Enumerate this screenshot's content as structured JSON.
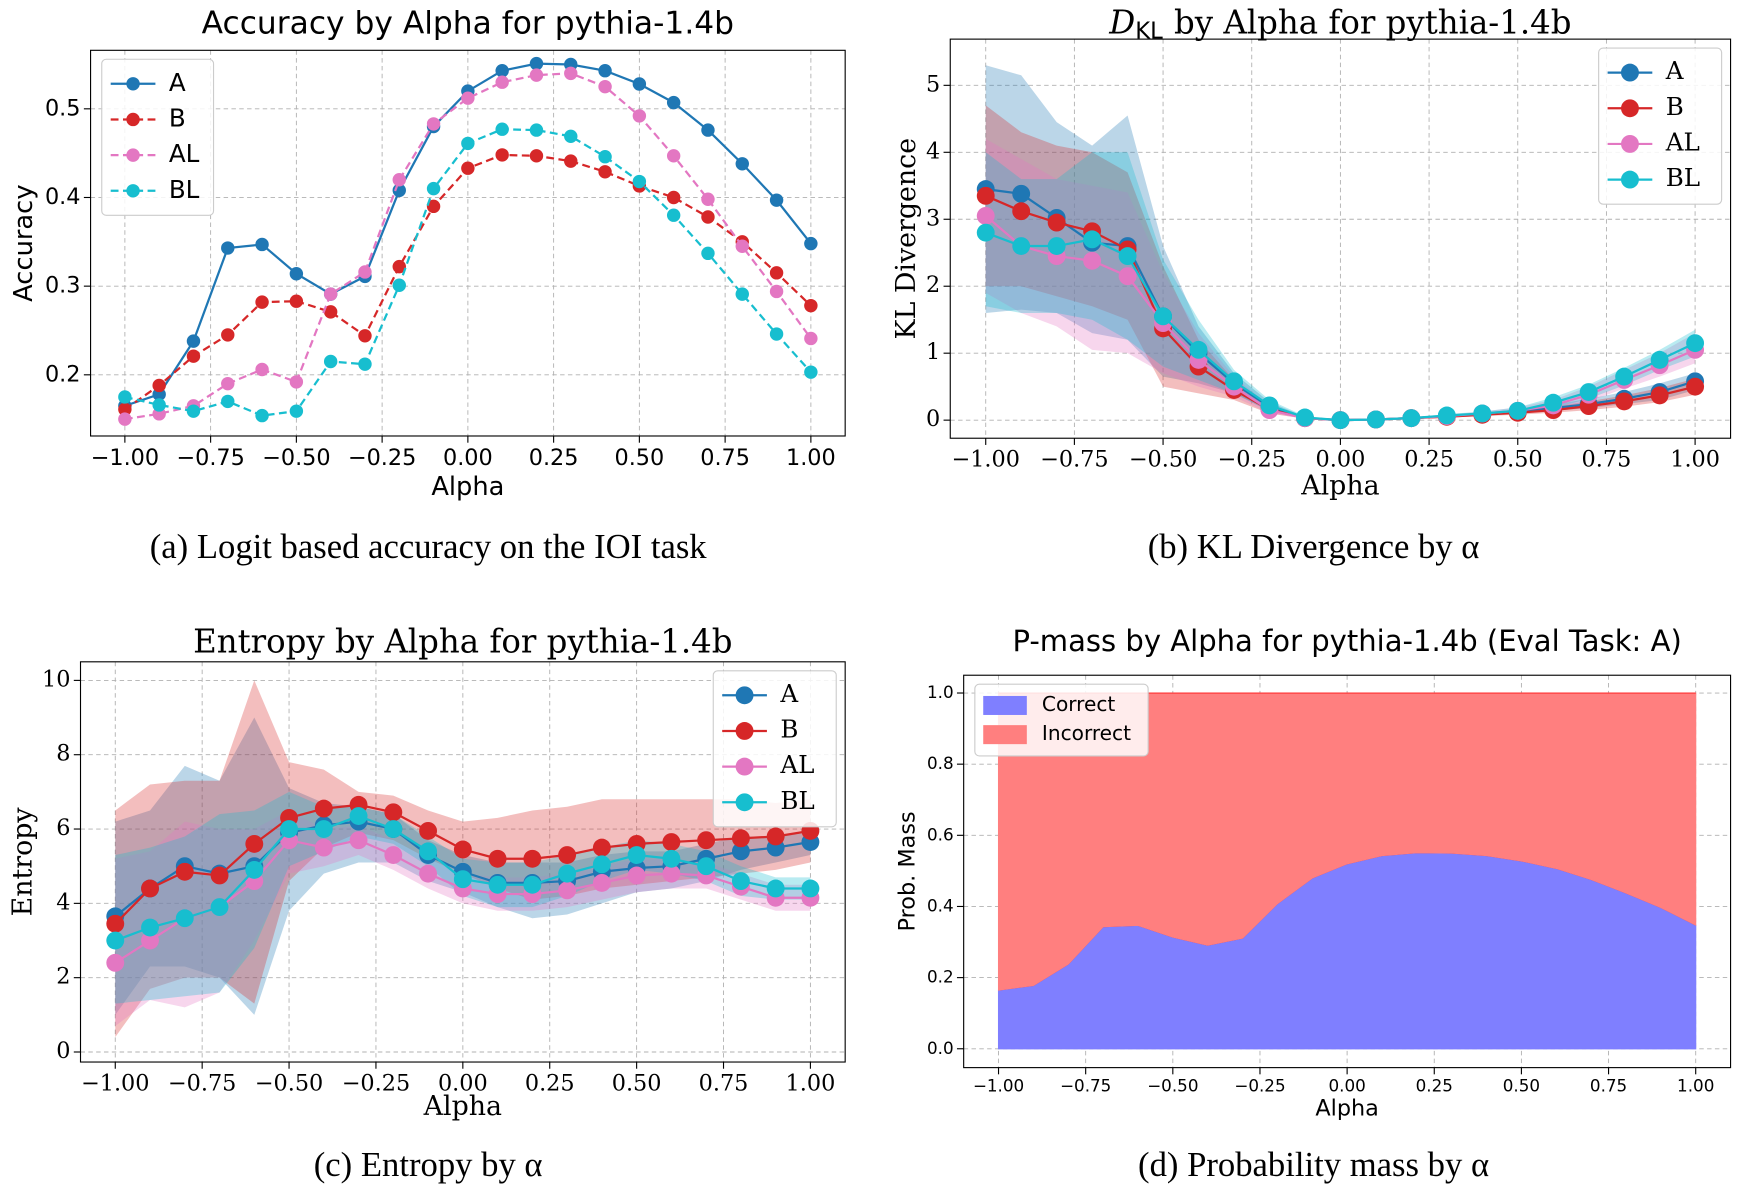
{
  "chart_data": [
    {
      "type": "line",
      "font": "sans",
      "legend": "upper left",
      "grid": true,
      "title": "Accuracy by Alpha for pythia-1.4b",
      "xlabel": "Alpha",
      "ylabel": "Accuracy",
      "caption": "(a) Logit based accuracy on the IOI task",
      "x": [
        -1,
        -0.9,
        -0.8,
        -0.7,
        -0.6,
        -0.5,
        -0.4,
        -0.3,
        -0.2,
        -0.1,
        0,
        0.1,
        0.2,
        0.3,
        0.4,
        0.5,
        0.6,
        0.7,
        0.8,
        0.9,
        1
      ],
      "xlim": [
        -1.1,
        1.1
      ],
      "ylim": [
        0.131,
        0.566
      ],
      "xticks": [
        {
          "value": -1,
          "label": "−1.00"
        },
        {
          "value": -0.75,
          "label": "−0.75"
        },
        {
          "value": -0.5,
          "label": "−0.50"
        },
        {
          "value": -0.25,
          "label": "−0.25"
        },
        {
          "value": 0,
          "label": "0.00"
        },
        {
          "value": 0.25,
          "label": "0.25"
        },
        {
          "value": 0.5,
          "label": "0.50"
        },
        {
          "value": 0.75,
          "label": "0.75"
        },
        {
          "value": 1,
          "label": "1.00"
        }
      ],
      "yticks": [
        0.2,
        0.3,
        0.4,
        0.5
      ],
      "series": [
        {
          "name": "A",
          "color": "#1f77b4",
          "linestyle": "solid",
          "values": [
            0.165,
            0.178,
            0.238,
            0.343,
            0.347,
            0.314,
            0.291,
            0.311,
            0.408,
            0.48,
            0.52,
            0.543,
            0.551,
            0.55,
            0.543,
            0.528,
            0.507,
            0.476,
            0.438,
            0.397,
            0.348
          ]
        },
        {
          "name": "B",
          "color": "#d62728",
          "linestyle": "dashed",
          "values": [
            0.161,
            0.188,
            0.221,
            0.245,
            0.282,
            0.283,
            0.271,
            0.244,
            0.322,
            0.39,
            0.433,
            0.448,
            0.447,
            0.441,
            0.429,
            0.413,
            0.4,
            0.378,
            0.35,
            0.315,
            0.278
          ]
        },
        {
          "name": "AL",
          "color": "#e377c2",
          "linestyle": "dashed",
          "values": [
            0.15,
            0.156,
            0.165,
            0.19,
            0.206,
            0.192,
            0.291,
            0.316,
            0.42,
            0.483,
            0.512,
            0.53,
            0.538,
            0.54,
            0.525,
            0.492,
            0.447,
            0.398,
            0.345,
            0.294,
            0.241
          ]
        },
        {
          "name": "BL",
          "color": "#17becf",
          "linestyle": "dashed",
          "values": [
            0.175,
            0.166,
            0.159,
            0.17,
            0.154,
            0.159,
            0.215,
            0.212,
            0.301,
            0.41,
            0.461,
            0.477,
            0.476,
            0.469,
            0.446,
            0.418,
            0.38,
            0.337,
            0.291,
            0.246,
            0.203
          ]
        }
      ]
    },
    {
      "type": "line",
      "font": "serif",
      "legend": "upper right",
      "grid": true,
      "title_parts": [
        "D",
        "KL",
        "by Alpha for pythia-1.4b"
      ],
      "xlabel": "Alpha",
      "ylabel": "KL Divergence",
      "caption": "(b) KL Divergence by α",
      "x": [
        -1,
        -0.9,
        -0.8,
        -0.7,
        -0.6,
        -0.5,
        -0.4,
        -0.3,
        -0.2,
        -0.1,
        0,
        0.1,
        0.2,
        0.3,
        0.4,
        0.5,
        0.6,
        0.7,
        0.8,
        0.9,
        1
      ],
      "xlim": [
        -1.1,
        1.1
      ],
      "ylim": [
        -0.27,
        5.69
      ],
      "xticks": [
        {
          "value": -1,
          "label": "−1.00"
        },
        {
          "value": -0.75,
          "label": "−0.75"
        },
        {
          "value": -0.5,
          "label": "−0.50"
        },
        {
          "value": -0.25,
          "label": "−0.25"
        },
        {
          "value": 0,
          "label": "0.00"
        },
        {
          "value": 0.25,
          "label": "0.25"
        },
        {
          "value": 0.5,
          "label": "0.50"
        },
        {
          "value": 0.75,
          "label": "0.75"
        },
        {
          "value": 1,
          "label": "1.00"
        }
      ],
      "yticks": [
        0,
        1,
        2,
        3,
        4,
        5
      ],
      "series": [
        {
          "name": "A",
          "color": "#1f77b4",
          "linestyle": "solid",
          "values": [
            3.45,
            3.38,
            3.02,
            2.65,
            2.6,
            1.55,
            1.0,
            0.55,
            0.2,
            0.03,
            0.0,
            0.01,
            0.03,
            0.06,
            0.09,
            0.13,
            0.18,
            0.24,
            0.32,
            0.42,
            0.58
          ],
          "upper": [
            5.3,
            5.15,
            4.45,
            4.1,
            4.55,
            2.6,
            1.4,
            0.7,
            0.27,
            0.05,
            0.01,
            0.02,
            0.04,
            0.08,
            0.11,
            0.16,
            0.23,
            0.32,
            0.42,
            0.55,
            0.7
          ],
          "lower": [
            1.6,
            1.65,
            1.6,
            1.3,
            1.2,
            0.65,
            0.55,
            0.4,
            0.13,
            0.02,
            0,
            0.005,
            0.02,
            0.045,
            0.07,
            0.1,
            0.14,
            0.18,
            0.24,
            0.3,
            0.45
          ]
        },
        {
          "name": "B",
          "color": "#d62728",
          "linestyle": "solid",
          "values": [
            3.35,
            3.12,
            2.95,
            2.82,
            2.55,
            1.37,
            0.8,
            0.45,
            0.16,
            0.03,
            0.0,
            0.01,
            0.03,
            0.05,
            0.08,
            0.11,
            0.15,
            0.21,
            0.28,
            0.37,
            0.5
          ],
          "upper": [
            4.7,
            4.3,
            4.1,
            4.0,
            3.7,
            2.3,
            1.2,
            0.6,
            0.22,
            0.05,
            0.01,
            0.02,
            0.04,
            0.07,
            0.1,
            0.14,
            0.2,
            0.28,
            0.37,
            0.48,
            0.62
          ],
          "lower": [
            2.0,
            2.0,
            1.85,
            1.7,
            1.5,
            0.5,
            0.4,
            0.3,
            0.1,
            0.02,
            0,
            0.005,
            0.02,
            0.035,
            0.06,
            0.08,
            0.11,
            0.15,
            0.2,
            0.27,
            0.38
          ]
        },
        {
          "name": "AL",
          "color": "#e377c2",
          "linestyle": "solid",
          "values": [
            3.05,
            2.6,
            2.45,
            2.38,
            2.15,
            1.45,
            0.9,
            0.5,
            0.15,
            0.03,
            0.0,
            0.01,
            0.03,
            0.06,
            0.1,
            0.14,
            0.22,
            0.38,
            0.6,
            0.82,
            1.05
          ],
          "upper": [
            4.2,
            3.9,
            3.6,
            3.5,
            3.4,
            2.2,
            1.3,
            0.65,
            0.22,
            0.05,
            0.01,
            0.02,
            0.04,
            0.08,
            0.13,
            0.19,
            0.3,
            0.5,
            0.75,
            1.0,
            1.3
          ],
          "lower": [
            1.9,
            1.6,
            1.4,
            1.05,
            1.0,
            0.7,
            0.5,
            0.35,
            0.1,
            0.02,
            0,
            0.005,
            0.02,
            0.04,
            0.07,
            0.1,
            0.15,
            0.28,
            0.47,
            0.65,
            0.85
          ]
        },
        {
          "name": "BL",
          "color": "#17becf",
          "linestyle": "solid",
          "values": [
            2.8,
            2.6,
            2.6,
            2.7,
            2.45,
            1.55,
            1.05,
            0.58,
            0.22,
            0.04,
            0.0,
            0.01,
            0.03,
            0.07,
            0.1,
            0.14,
            0.26,
            0.42,
            0.65,
            0.9,
            1.15
          ],
          "upper": [
            4.0,
            3.6,
            3.6,
            4.0,
            4.0,
            2.4,
            1.5,
            0.75,
            0.3,
            0.06,
            0.01,
            0.02,
            0.04,
            0.09,
            0.13,
            0.19,
            0.34,
            0.53,
            0.78,
            1.05,
            1.35
          ],
          "lower": [
            1.7,
            1.6,
            1.6,
            1.5,
            1.2,
            0.8,
            0.6,
            0.4,
            0.14,
            0.02,
            0,
            0.005,
            0.02,
            0.05,
            0.07,
            0.1,
            0.18,
            0.32,
            0.52,
            0.75,
            0.95
          ]
        }
      ]
    },
    {
      "type": "line",
      "font": "serif",
      "legend": "upper right",
      "grid": true,
      "title": "Entropy by Alpha for pythia-1.4b",
      "xlabel": "Alpha",
      "ylabel": "Entropy",
      "caption": "(c) Entropy by α",
      "x": [
        -1,
        -0.9,
        -0.8,
        -0.7,
        -0.6,
        -0.5,
        -0.4,
        -0.3,
        -0.2,
        -0.1,
        0,
        0.1,
        0.2,
        0.3,
        0.4,
        0.5,
        0.6,
        0.7,
        0.8,
        0.9,
        1
      ],
      "xlim": [
        -1.1,
        1.1
      ],
      "ylim": [
        -0.27,
        10.5
      ],
      "xticks": [
        {
          "value": -1,
          "label": "−1.00"
        },
        {
          "value": -0.75,
          "label": "−0.75"
        },
        {
          "value": -0.5,
          "label": "−0.50"
        },
        {
          "value": -0.25,
          "label": "−0.25"
        },
        {
          "value": 0,
          "label": "0.00"
        },
        {
          "value": 0.25,
          "label": "0.25"
        },
        {
          "value": 0.5,
          "label": "0.50"
        },
        {
          "value": 0.75,
          "label": "0.75"
        },
        {
          "value": 1,
          "label": "1.00"
        }
      ],
      "yticks": [
        0,
        2,
        4,
        6,
        8,
        10
      ],
      "series": [
        {
          "name": "A",
          "color": "#1f77b4",
          "linestyle": "solid",
          "values": [
            3.65,
            4.4,
            5.0,
            4.8,
            5.0,
            5.9,
            6.1,
            6.2,
            6.0,
            5.3,
            4.85,
            4.55,
            4.55,
            4.6,
            4.85,
            4.95,
            5.0,
            5.2,
            5.4,
            5.5,
            5.65
          ],
          "upper": [
            6.2,
            6.5,
            7.7,
            7.3,
            9.0,
            7.1,
            6.7,
            6.6,
            6.4,
            5.7,
            5.3,
            5.1,
            5.1,
            5.1,
            5.3,
            5.4,
            5.4,
            5.6,
            5.8,
            5.8,
            5.9
          ],
          "lower": [
            1.0,
            2.3,
            2.3,
            2.0,
            1.0,
            3.8,
            4.8,
            5.1,
            5.1,
            4.6,
            4.3,
            3.9,
            3.6,
            3.7,
            4.0,
            4.3,
            4.4,
            4.6,
            4.9,
            5.1,
            5.3
          ]
        },
        {
          "name": "B",
          "color": "#d62728",
          "linestyle": "solid",
          "values": [
            3.45,
            4.4,
            4.85,
            4.75,
            5.6,
            6.3,
            6.55,
            6.65,
            6.45,
            5.95,
            5.45,
            5.2,
            5.2,
            5.3,
            5.5,
            5.6,
            5.65,
            5.7,
            5.75,
            5.8,
            5.95
          ],
          "upper": [
            6.5,
            7.2,
            7.3,
            7.3,
            10.0,
            7.8,
            7.6,
            7.0,
            6.9,
            6.5,
            6.2,
            6.3,
            6.5,
            6.6,
            6.8,
            6.8,
            6.8,
            6.8,
            6.8,
            6.7,
            6.8
          ],
          "lower": [
            0.4,
            1.7,
            2.0,
            2.0,
            1.3,
            4.6,
            5.5,
            5.9,
            5.7,
            5.2,
            4.8,
            4.4,
            4.1,
            4.2,
            4.4,
            4.5,
            4.6,
            4.7,
            4.8,
            4.9,
            5.1
          ]
        },
        {
          "name": "AL",
          "color": "#e377c2",
          "linestyle": "solid",
          "values": [
            2.4,
            3.0,
            3.6,
            3.9,
            4.6,
            5.7,
            5.5,
            5.7,
            5.3,
            4.8,
            4.4,
            4.25,
            4.25,
            4.35,
            4.55,
            4.75,
            4.8,
            4.75,
            4.45,
            4.15,
            4.15
          ],
          "upper": [
            5.2,
            5.4,
            6.2,
            6.0,
            6.0,
            6.5,
            6.0,
            6.1,
            5.7,
            5.2,
            4.8,
            4.7,
            4.7,
            4.8,
            5.0,
            5.2,
            5.2,
            5.1,
            4.8,
            4.5,
            4.5
          ],
          "lower": [
            0.7,
            1.4,
            1.2,
            1.6,
            3.0,
            4.8,
            5.0,
            5.3,
            4.9,
            4.4,
            4.0,
            3.8,
            3.8,
            3.9,
            4.1,
            4.3,
            4.4,
            4.4,
            4.1,
            3.8,
            3.8
          ]
        },
        {
          "name": "BL",
          "color": "#17becf",
          "linestyle": "solid",
          "values": [
            3.0,
            3.35,
            3.6,
            3.9,
            4.9,
            6.0,
            6.0,
            6.35,
            6.0,
            5.4,
            4.65,
            4.5,
            4.5,
            4.8,
            5.05,
            5.3,
            5.2,
            5.0,
            4.6,
            4.4,
            4.4
          ],
          "upper": [
            5.3,
            5.5,
            5.8,
            6.4,
            6.5,
            7.0,
            6.6,
            6.6,
            6.4,
            5.8,
            5.2,
            5.1,
            5.1,
            5.3,
            5.5,
            5.7,
            5.6,
            5.4,
            5.0,
            4.7,
            4.7
          ],
          "lower": [
            1.3,
            1.4,
            1.5,
            1.6,
            2.8,
            5.0,
            5.4,
            5.8,
            5.6,
            5.0,
            4.2,
            3.9,
            3.9,
            4.2,
            4.6,
            4.9,
            4.8,
            4.6,
            4.2,
            4.1,
            4.1
          ]
        }
      ]
    },
    {
      "type": "stack",
      "font": "sans",
      "legend": "upper left",
      "grid": true,
      "title": "P-mass by Alpha for pythia-1.4b (Eval Task: A)",
      "xlabel": "Alpha",
      "ylabel": "Prob. Mass",
      "caption": "(d) Probability mass by α",
      "x": [
        -1,
        -0.9,
        -0.8,
        -0.7,
        -0.6,
        -0.5,
        -0.4,
        -0.3,
        -0.2,
        -0.1,
        0,
        0.1,
        0.2,
        0.3,
        0.4,
        0.5,
        0.6,
        0.7,
        0.8,
        0.9,
        1
      ],
      "xlim": [
        -1.1,
        1.1
      ],
      "ylim": [
        -0.053,
        1.05
      ],
      "xticks": [
        {
          "value": -1,
          "label": "−1.00"
        },
        {
          "value": -0.75,
          "label": "−0.75"
        },
        {
          "value": -0.5,
          "label": "−0.50"
        },
        {
          "value": -0.25,
          "label": "−0.25"
        },
        {
          "value": 0,
          "label": "0.00"
        },
        {
          "value": 0.25,
          "label": "0.25"
        },
        {
          "value": 0.5,
          "label": "0.50"
        },
        {
          "value": 0.75,
          "label": "0.75"
        },
        {
          "value": 1,
          "label": "1.00"
        }
      ],
      "yticks": [
        {
          "value": 0,
          "label": "0.0"
        },
        0.2,
        0.4,
        0.6,
        0.8,
        {
          "value": 1,
          "label": "1.0"
        }
      ],
      "series": [
        {
          "name": "Correct",
          "color": "#7f7fff",
          "values": [
            0.165,
            0.178,
            0.238,
            0.343,
            0.347,
            0.314,
            0.291,
            0.311,
            0.408,
            0.48,
            0.52,
            0.543,
            0.551,
            0.55,
            0.543,
            0.528,
            0.507,
            0.476,
            0.438,
            0.397,
            0.348
          ]
        },
        {
          "name": "Incorrect",
          "color": "#ff7f7f",
          "values": [
            0.835,
            0.822,
            0.762,
            0.657,
            0.653,
            0.686,
            0.709,
            0.689,
            0.592,
            0.52,
            0.48,
            0.457,
            0.449,
            0.45,
            0.457,
            0.472,
            0.493,
            0.524,
            0.562,
            0.603,
            0.652
          ]
        }
      ]
    }
  ]
}
